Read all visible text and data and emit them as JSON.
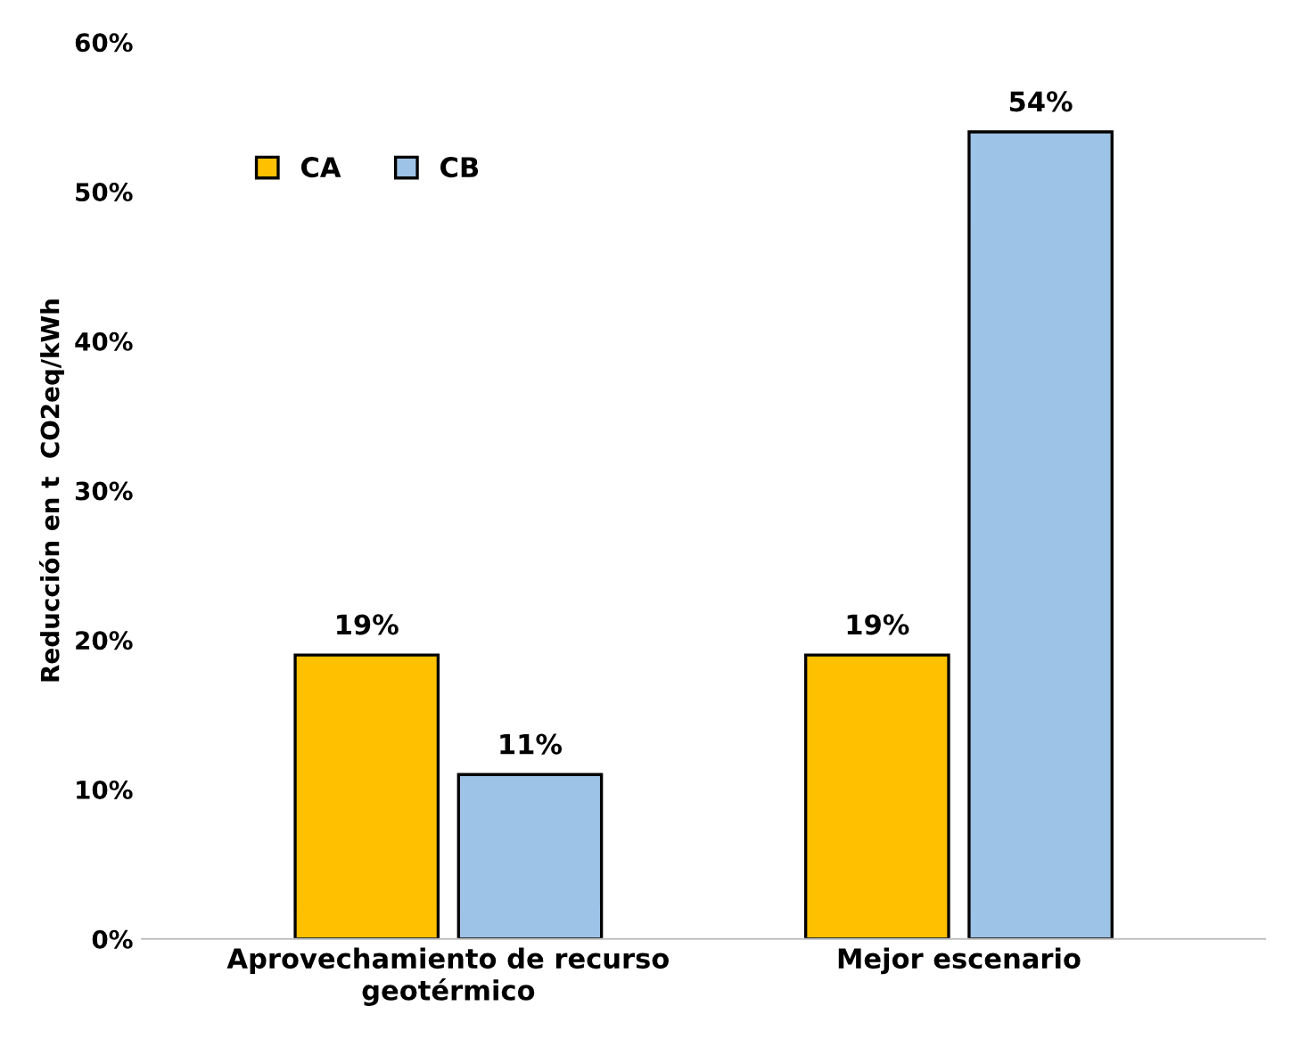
{
  "chart_data": {
    "type": "bar",
    "ylabel": "Reducción en t  CO2eq/kWh",
    "categories": [
      "Aprovechamiento de recurso\ngeotérmico",
      "Mejor escenario"
    ],
    "series": [
      {
        "name": "CA",
        "color": "#ffc000",
        "values": [
          19,
          19
        ],
        "value_labels": [
          "19%",
          "19%"
        ]
      },
      {
        "name": "CB",
        "color": "#9dc3e6",
        "values": [
          11,
          54
        ],
        "value_labels": [
          "11%",
          "54%"
        ]
      }
    ],
    "ylim": [
      0,
      60
    ],
    "yticks": [
      {
        "value": 0,
        "label": "0%"
      },
      {
        "value": 10,
        "label": "10%"
      },
      {
        "value": 20,
        "label": "20%"
      },
      {
        "value": 30,
        "label": "30%"
      },
      {
        "value": 40,
        "label": "40%"
      },
      {
        "value": 50,
        "label": "50%"
      },
      {
        "value": 60,
        "label": "60%"
      }
    ],
    "grid": false,
    "legend": "top left"
  }
}
